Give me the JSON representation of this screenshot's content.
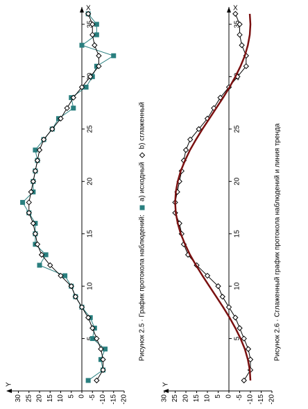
{
  "chart_data": [
    {
      "type": "line",
      "title": "Рисунок 2.5 · График протокола наблюдений:",
      "x_label": "X",
      "y_label": "Y",
      "x": [
        1,
        2,
        3,
        4,
        5,
        6,
        7,
        8,
        9,
        10,
        11,
        12,
        13,
        14,
        15,
        16,
        17,
        18,
        19,
        20,
        21,
        22,
        23,
        24,
        25,
        26,
        27,
        28,
        29,
        30,
        31,
        32,
        33,
        34,
        35,
        36
      ],
      "series": [
        {
          "name": "а) исходный",
          "color": "#2a7f7f",
          "marker": "square",
          "values": [
            -3,
            -10,
            -9,
            -11,
            -5,
            -6,
            -4,
            0,
            3,
            5,
            8,
            20,
            17,
            22,
            22,
            22,
            25,
            28,
            23,
            23,
            22,
            21,
            22,
            18,
            14,
            11,
            4,
            5,
            -2,
            -5,
            -7,
            -15,
            0,
            -7,
            -7,
            -3
          ]
        },
        {
          "name": "b) сглаженный",
          "color": "#000000",
          "marker": "diamond",
          "values": [
            -7,
            -10,
            -10,
            -9,
            -7,
            -5,
            -3,
            0,
            3,
            5,
            10,
            15,
            19,
            21,
            22,
            23,
            25,
            25,
            24,
            23,
            22,
            21,
            20,
            18,
            14,
            10,
            7,
            4,
            0,
            -4,
            -8,
            -8,
            -6,
            -5,
            -5,
            -3
          ]
        }
      ],
      "xlim": [
        0,
        36
      ],
      "ylim": [
        -20,
        30
      ],
      "xticks": [
        5,
        10,
        15,
        20,
        25,
        30,
        35
      ],
      "yticks": [
        -20,
        -15,
        -10,
        -5,
        0,
        5,
        10,
        15,
        20,
        25,
        30
      ]
    },
    {
      "type": "line",
      "title": "Рисунок 2.6 · Сглаженный график протокола наблюдений и линия тренда",
      "x_label": "X",
      "y_label": "Y",
      "x": [
        1,
        2,
        3,
        4,
        5,
        6,
        7,
        8,
        9,
        10,
        11,
        12,
        13,
        14,
        15,
        16,
        17,
        18,
        19,
        20,
        21,
        22,
        23,
        24,
        25,
        26,
        27,
        28,
        29,
        30,
        31,
        32,
        33,
        34,
        35,
        36
      ],
      "series": [
        {
          "color": "#000000",
          "marker": "diamond",
          "values": [
            -7,
            -10,
            -10,
            -9,
            -7,
            -5,
            -3,
            0,
            3,
            5,
            10,
            15,
            19,
            21,
            22,
            23,
            25,
            25,
            24,
            23,
            22,
            21,
            20,
            18,
            14,
            10,
            7,
            4,
            0,
            -4,
            -8,
            -8,
            -6,
            -5,
            -5,
            -3
          ]
        },
        {
          "color": "#7a1010",
          "marker": "none",
          "width": 2.5,
          "values": [
            -10,
            -9.7,
            -8.8,
            -7.4,
            -5.4,
            -3,
            -0.3,
            2.7,
            5.9,
            9.1,
            12.3,
            15.3,
            18.1,
            20.4,
            22.4,
            23.8,
            24.7,
            25,
            24.7,
            23.8,
            22.4,
            20.4,
            18.1,
            15.3,
            12.3,
            9.1,
            5.9,
            2.7,
            -0.3,
            -3,
            -5.4,
            -7.4,
            -8.8,
            -9.7,
            -10,
            -9.7
          ]
        }
      ],
      "xlim": [
        0,
        36
      ],
      "ylim": [
        -20,
        30
      ],
      "xticks": [
        5,
        10,
        15,
        20,
        25,
        30,
        35
      ],
      "yticks": [
        -20,
        -15,
        -10,
        -5,
        0,
        5,
        10,
        15,
        20,
        25,
        30
      ]
    }
  ]
}
